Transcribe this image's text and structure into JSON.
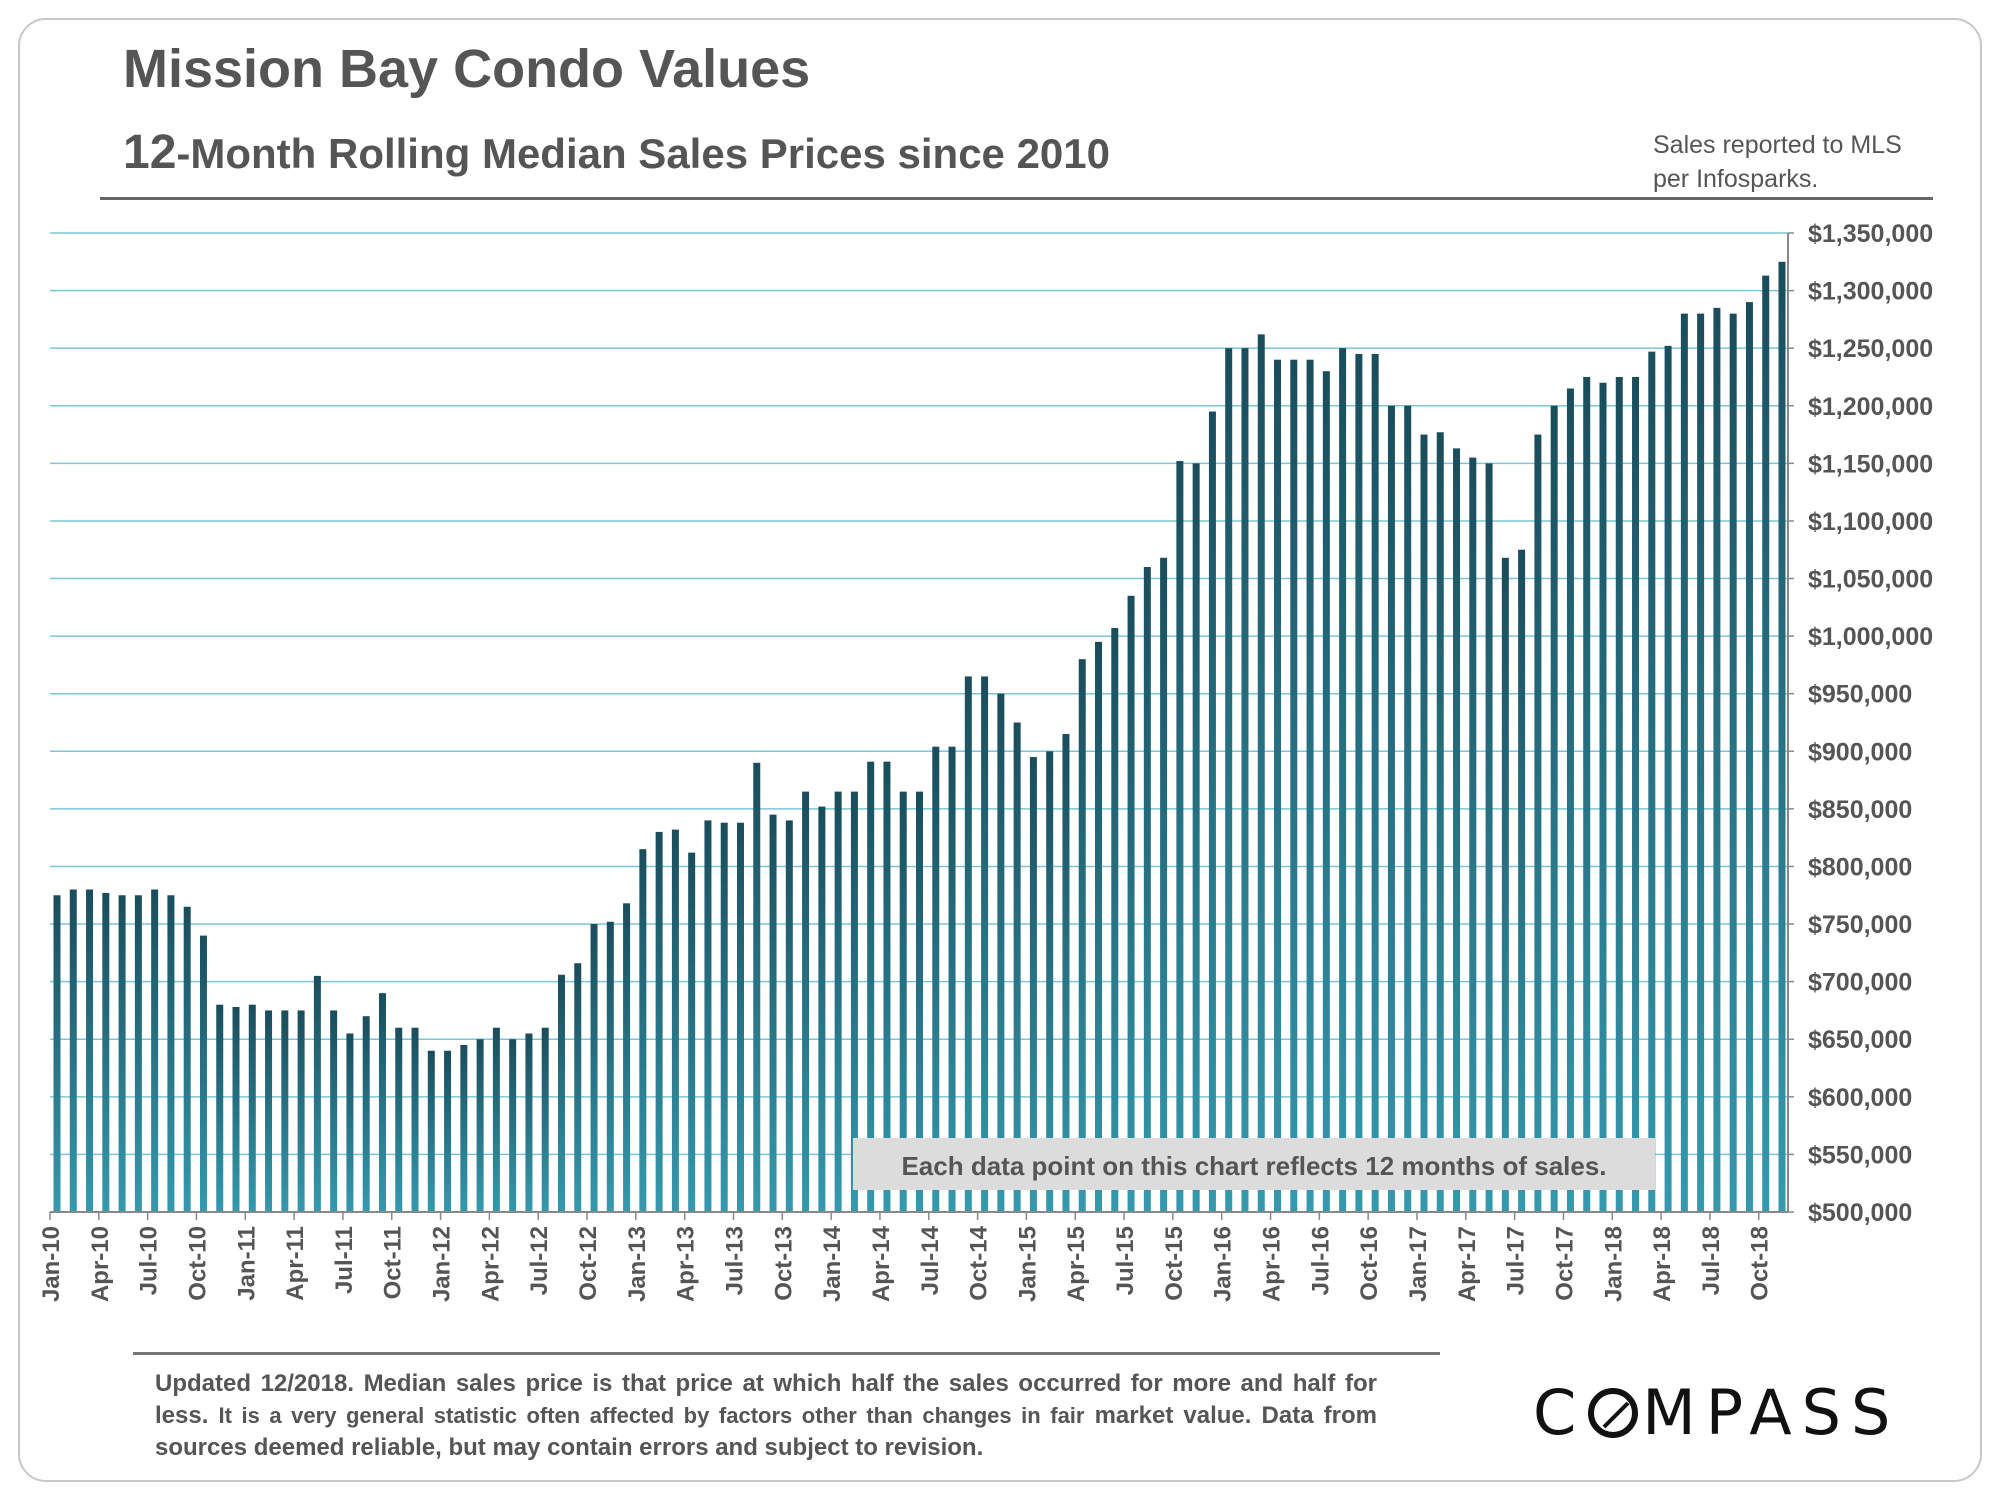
{
  "header": {
    "title": "Mission Bay Condo Values",
    "subtitle_prefix": "12",
    "subtitle_rest": "-Month Rolling Median Sales Prices since 2010",
    "source_line1": "Sales reported to MLS",
    "source_line2": "per Infosparks."
  },
  "annotation": "Each data point on this chart reflects 12 months of sales.",
  "footer": {
    "text_bold": "Updated 12/2018. Median sales price is that price at which half the sales occurred for more and half for less.",
    "text_small": "It is a very general statistic often affected by factors other than changes in fair",
    "text_end": "market value. Data from sources deemed reliable, but may contain errors and subject to revision."
  },
  "logo": {
    "pre": "C",
    "post": "MPASS"
  },
  "colors": {
    "bar_top": "#1a4d5c",
    "bar_bottom": "#3599ad",
    "gridline": "#7cc5d8",
    "annotation_bg": "#dcdcdc",
    "annotation_text": "#555555"
  },
  "chart_data": {
    "type": "bar",
    "title": "Mission Bay Condo Values",
    "subtitle": "12-Month Rolling Median Sales Prices since 2010",
    "xlabel": "",
    "ylabel": "",
    "ylim": [
      500000,
      1350000
    ],
    "ytick_step": 50000,
    "ytick_labels": [
      "$500,000",
      "$550,000",
      "$600,000",
      "$650,000",
      "$700,000",
      "$750,000",
      "$800,000",
      "$850,000",
      "$900,000",
      "$950,000",
      "$1,000,000",
      "$1,050,000",
      "$1,100,000",
      "$1,150,000",
      "$1,200,000",
      "$1,250,000",
      "$1,300,000",
      "$1,350,000"
    ],
    "y_axis_side": "right",
    "grid": true,
    "start_month": "2010-01",
    "xtick_every": 3,
    "xtick_labels": [
      "Jan-10",
      "Apr-10",
      "Jul-10",
      "Oct-10",
      "Jan-11",
      "Apr-11",
      "Jul-11",
      "Oct-11",
      "Jan-12",
      "Apr-12",
      "Jul-12",
      "Oct-12",
      "Jan-13",
      "Apr-13",
      "Jul-13",
      "Oct-13",
      "Jan-14",
      "Apr-14",
      "Jul-14",
      "Oct-14",
      "Jan-15",
      "Apr-15",
      "Jul-15",
      "Oct-15",
      "Jan-16",
      "Apr-16",
      "Jul-16",
      "Oct-16",
      "Jan-17",
      "Apr-17",
      "Jul-17",
      "Oct-17",
      "Jan-18",
      "Apr-18",
      "Jul-18",
      "Oct-18"
    ],
    "values": [
      775000,
      780000,
      780000,
      777000,
      775000,
      775000,
      780000,
      775000,
      765000,
      740000,
      680000,
      678000,
      680000,
      675000,
      675000,
      675000,
      705000,
      675000,
      655000,
      670000,
      690000,
      660000,
      660000,
      640000,
      640000,
      645000,
      650000,
      660000,
      650000,
      655000,
      660000,
      706000,
      716000,
      750000,
      752000,
      768000,
      815000,
      830000,
      832000,
      812000,
      840000,
      838000,
      838000,
      890000,
      845000,
      840000,
      865000,
      852000,
      865000,
      865000,
      891000,
      891000,
      865000,
      865000,
      904000,
      904000,
      965000,
      965000,
      950000,
      925000,
      895000,
      900000,
      915000,
      980000,
      995000,
      1007000,
      1035000,
      1060000,
      1068000,
      1152000,
      1150000,
      1195000,
      1250000,
      1250000,
      1262000,
      1240000,
      1240000,
      1240000,
      1230000,
      1250000,
      1245000,
      1245000,
      1200000,
      1200000,
      1175000,
      1177000,
      1163000,
      1155000,
      1150000,
      1068000,
      1075000,
      1175000,
      1200000,
      1215000,
      1225000,
      1220000,
      1225000,
      1225000,
      1247000,
      1252000,
      1280000,
      1280000,
      1285000,
      1280000,
      1290000,
      1313000,
      1325000
    ]
  }
}
